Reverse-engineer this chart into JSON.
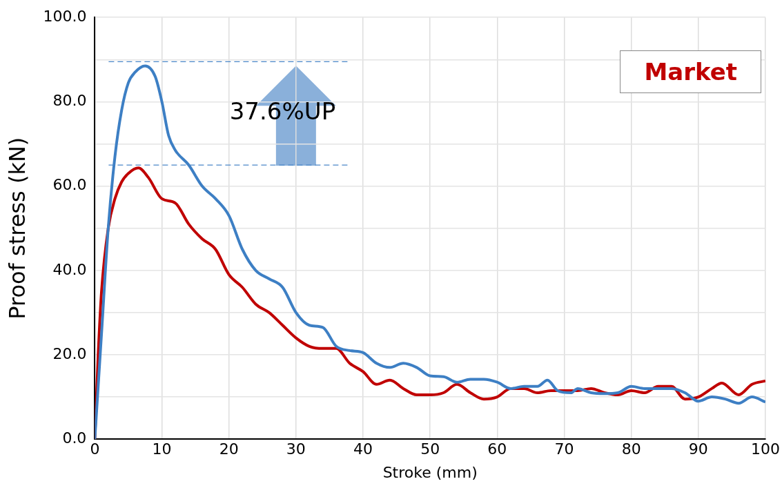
{
  "chart_data": {
    "type": "line",
    "xlabel": "Stroke (mm)",
    "ylabel": "Proof stress (kN)",
    "xlim": [
      0,
      100
    ],
    "xticks": [
      0,
      10,
      20,
      30,
      40,
      50,
      60,
      70,
      80,
      90,
      100
    ],
    "ylim": [
      0,
      100
    ],
    "yticks": [
      {
        "value": 0,
        "label": "0.0"
      },
      {
        "value": 10,
        "label": null
      },
      {
        "value": 20,
        "label": "20.0"
      },
      {
        "value": 30,
        "label": null
      },
      {
        "value": 40,
        "label": "40.0"
      },
      {
        "value": 50,
        "label": null
      },
      {
        "value": 60,
        "label": "60.0"
      },
      {
        "value": 70,
        "label": null
      },
      {
        "value": 80,
        "label": "80.0"
      },
      {
        "value": 90,
        "label": null
      },
      {
        "value": 100,
        "label": "100.0"
      }
    ],
    "grid": true,
    "legend": "top right",
    "marker": "none",
    "line_style": "solid",
    "annotations": [
      "37.6%UP"
    ],
    "ref_lines": [
      {
        "axis": "y",
        "value": 89.5,
        "color": "#4a86c8",
        "line_style": "dashed"
      },
      {
        "axis": "y",
        "value": 65,
        "color": "#4a86c8",
        "line_style": "dashed"
      }
    ],
    "series": [
      {
        "color": "#3d7fc4",
        "x": [
          0,
          1,
          2,
          3,
          4,
          5,
          6,
          7.5,
          9,
          10,
          11,
          12,
          14,
          16,
          18,
          20,
          22,
          24,
          26,
          28,
          30,
          32,
          34,
          36,
          38,
          40,
          42,
          44,
          46,
          48,
          50,
          52,
          54,
          56,
          58,
          60,
          62,
          64,
          66,
          67.5,
          69,
          71,
          72,
          74,
          76,
          78,
          80,
          82,
          84,
          86,
          88,
          90,
          92,
          94,
          96,
          98,
          100
        ],
        "values": [
          0,
          25,
          50,
          67,
          78,
          84.5,
          87,
          88.5,
          86,
          80,
          72,
          68.5,
          65,
          60,
          57,
          53,
          45,
          40,
          38,
          36,
          30,
          27,
          26.5,
          22,
          21,
          20.5,
          18,
          17,
          18,
          17,
          15,
          14.8,
          13.5,
          14.2,
          14.2,
          13.5,
          12,
          12.5,
          12.5,
          14,
          11.5,
          11,
          12,
          11,
          10.8,
          11,
          12.5,
          12,
          12,
          12,
          11,
          9,
          10,
          9.5,
          8.5,
          10,
          8.8
        ]
      },
      {
        "name": "Market",
        "color": "#c00000",
        "x": [
          0,
          0.5,
          1,
          2,
          3,
          4,
          5,
          6.5,
          8,
          10,
          12,
          14,
          16,
          18,
          20,
          22,
          24,
          26,
          28,
          30,
          32,
          34,
          36,
          38,
          40,
          42,
          44,
          46,
          48,
          50,
          52,
          54,
          56,
          58,
          60,
          62,
          64,
          66,
          68,
          70,
          72,
          74,
          76,
          78,
          80,
          82,
          84,
          86,
          88,
          90,
          92,
          93.5,
          96,
          98,
          100
        ],
        "values": [
          0,
          20,
          35,
          50,
          57,
          61,
          63,
          64.3,
          62,
          57,
          56,
          51,
          47.5,
          45,
          39,
          36,
          32,
          30,
          27,
          24,
          22,
          21.5,
          21.5,
          18,
          16,
          13,
          14,
          12,
          10.5,
          10.5,
          11,
          13,
          11,
          9.5,
          10,
          12,
          12,
          11,
          11.5,
          11.5,
          11.5,
          12,
          11,
          10.5,
          11.5,
          11,
          12.5,
          12.5,
          9.5,
          10,
          12,
          13.3,
          10.5,
          13,
          13.8
        ]
      }
    ]
  }
}
